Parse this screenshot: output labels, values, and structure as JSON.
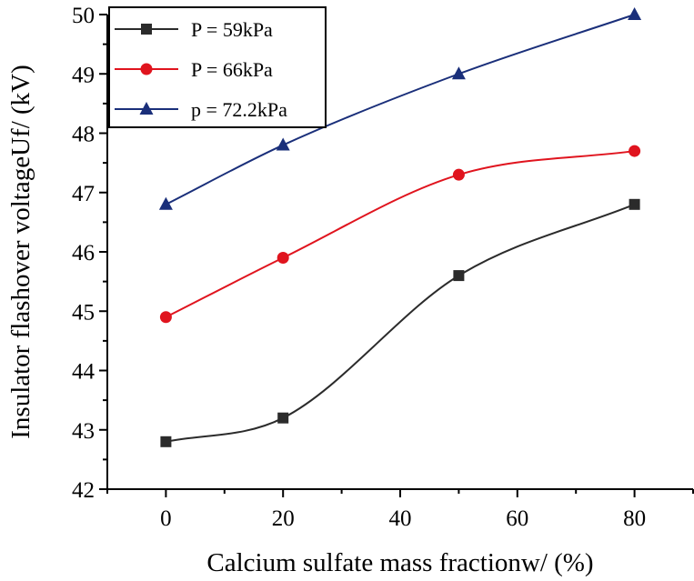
{
  "chart_data": {
    "type": "line",
    "title": "",
    "xlabel": "Calcium sulfate mass fractionw/ (%)",
    "ylabel": "Insulator flashover voltageUf/ (kV)",
    "xlim": [
      -10,
      90
    ],
    "ylim": [
      42,
      50
    ],
    "xticks": [
      0,
      20,
      40,
      60,
      80
    ],
    "yticks": [
      42,
      43,
      44,
      45,
      46,
      47,
      48,
      49,
      50
    ],
    "x": [
      0,
      20,
      50,
      80
    ],
    "legend_position": "top-left",
    "grid": false,
    "series": [
      {
        "name": "P = 59kPa",
        "marker": "square",
        "color": "#2b2b2b",
        "values": [
          42.8,
          43.2,
          45.6,
          46.8
        ]
      },
      {
        "name": "P = 66kPa",
        "marker": "circle",
        "color": "#e0141e",
        "values": [
          44.9,
          45.9,
          47.3,
          47.7
        ]
      },
      {
        "name": "p = 72.2kPa",
        "marker": "triangle",
        "color": "#1a2f7a",
        "values": [
          46.8,
          47.8,
          49.0,
          50.0
        ]
      }
    ]
  }
}
